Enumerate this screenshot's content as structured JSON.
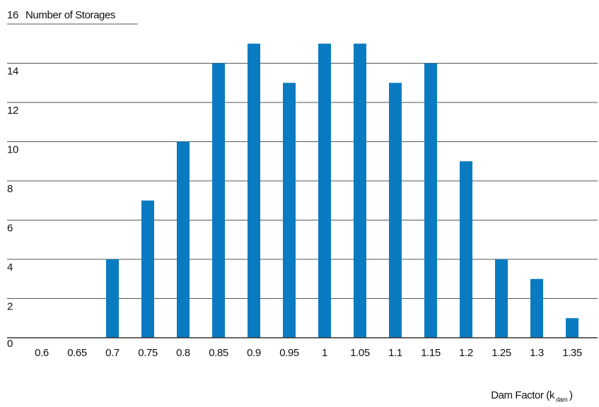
{
  "chart_data": {
    "type": "bar",
    "ylabel": "Number of Storages",
    "xlabel": [
      "Dam Factor (k",
      "dam",
      ")"
    ],
    "categories": [
      "0.6",
      "0.65",
      "0.7",
      "0.75",
      "0.8",
      "0.85",
      "0.9",
      "0.95",
      "1",
      "1.05",
      "1.1",
      "1.15",
      "1.2",
      "1.25",
      "1.3",
      "1.35"
    ],
    "values": [
      0,
      0,
      4,
      7,
      10,
      14,
      15,
      13,
      15,
      15,
      13,
      14,
      9,
      4,
      3,
      1
    ],
    "color": "#0a7bc1",
    "ylim": [
      0,
      16
    ],
    "yticks": [
      0,
      2,
      4,
      6,
      8,
      10,
      12,
      14,
      16
    ],
    "grid": true
  }
}
